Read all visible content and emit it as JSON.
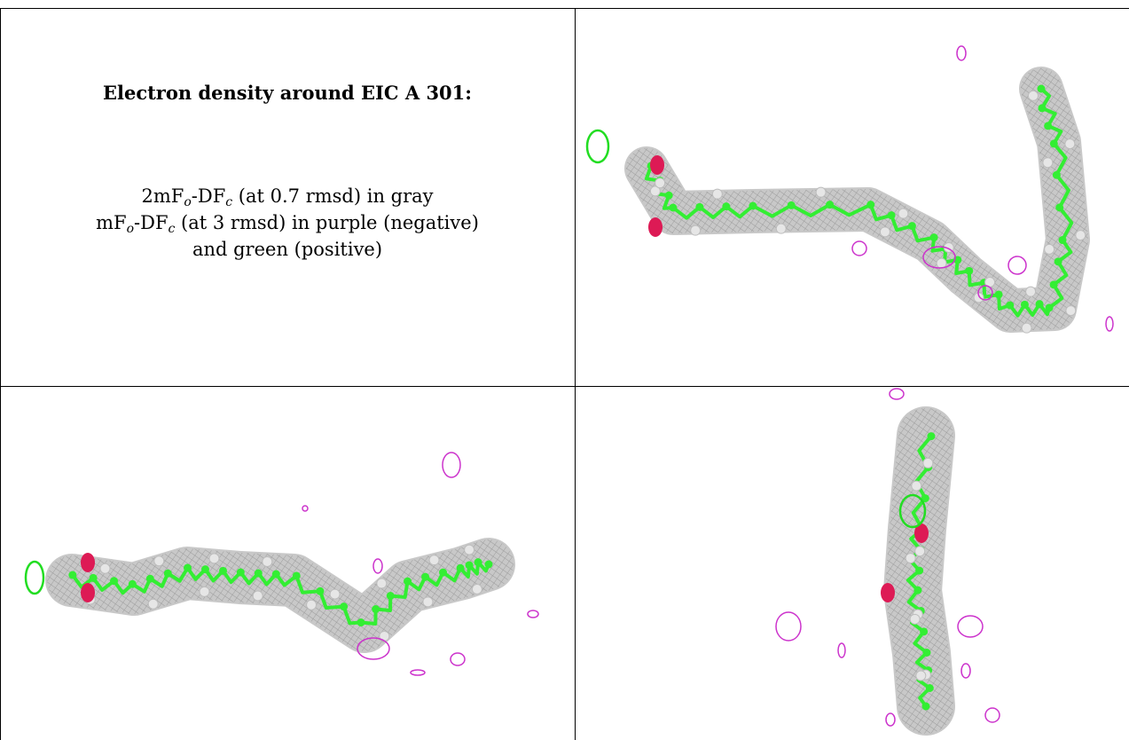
{
  "caption": {
    "title": "Electron density around EIC A 301:",
    "line1": {
      "pre": "2mF",
      "sub1": "o",
      "mid": "-DF",
      "sub2": "c",
      "post": " (at 0.7 rmsd) in gray"
    },
    "line2": {
      "pre": "mF",
      "sub1": "o",
      "mid": "-DF",
      "sub2": "c",
      "post": " (at 3 rmsd) in purple (negative)"
    },
    "line3": "and green (positive)"
  },
  "colors": {
    "mesh": "#9a9a9a",
    "carbon": "#33ee33",
    "oxygen": "#dd1a55",
    "hydrogen": "#e6e6e6",
    "negative": "#cc33cc",
    "positive": "#22dd22"
  }
}
